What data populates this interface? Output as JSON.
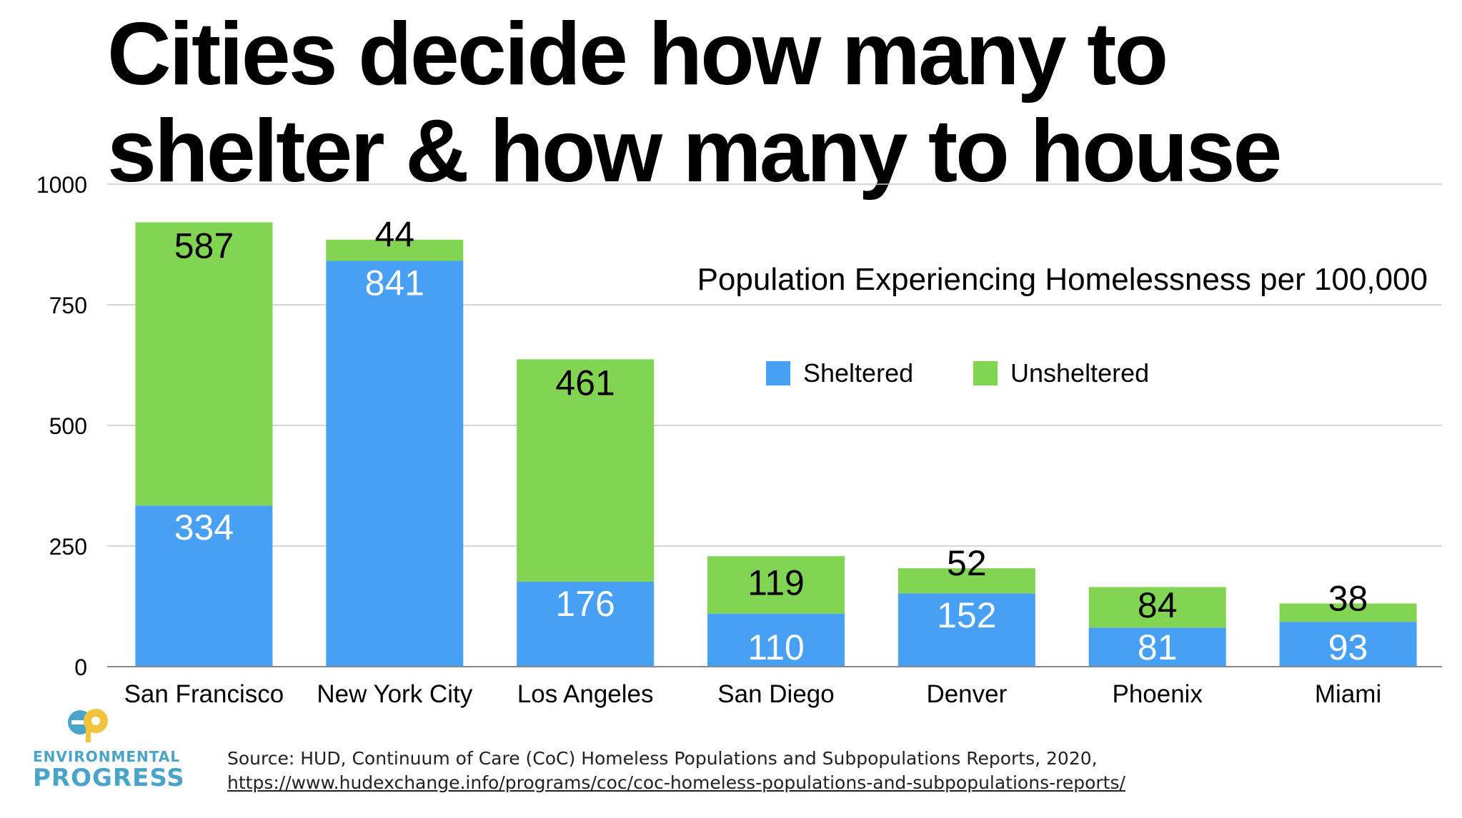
{
  "page": {
    "title_line1": "Cities decide how many to",
    "title_line2": "shelter & how many to house"
  },
  "chart_data": {
    "type": "bar",
    "stacked": true,
    "title": "Population Experiencing Homelessness per 100,000",
    "categories": [
      "San Francisco",
      "New York City",
      "Los Angeles",
      "San Diego",
      "Denver",
      "Phoenix",
      "Miami"
    ],
    "series": [
      {
        "name": "Sheltered",
        "color": "#48a0f5",
        "label_color": "#ffffff",
        "values": [
          334,
          841,
          176,
          110,
          152,
          81,
          93
        ]
      },
      {
        "name": "Unsheltered",
        "color": "#82d552",
        "label_color": "#000000",
        "values": [
          587,
          44,
          461,
          119,
          52,
          84,
          38
        ]
      }
    ],
    "ylim": [
      0,
      1000
    ],
    "yticks": [
      0,
      250,
      500,
      750,
      1000
    ],
    "grid": true,
    "legend_position": "top-right",
    "xlabel": "",
    "ylabel": ""
  },
  "footer": {
    "source_text": "Source: HUD, Continuum of Care (CoC) Homeless Populations and Subpopulations Reports, 2020, ",
    "source_link": "https://www.hudexchange.info/programs/coc/coc-homeless-populations-and-subpopulations-reports/"
  },
  "logo": {
    "mark": "ep",
    "line1": "ENVIRONMENTAL",
    "line2": "PROGRESS",
    "color": "#4aa3c8",
    "accent": "#f2c43d"
  }
}
